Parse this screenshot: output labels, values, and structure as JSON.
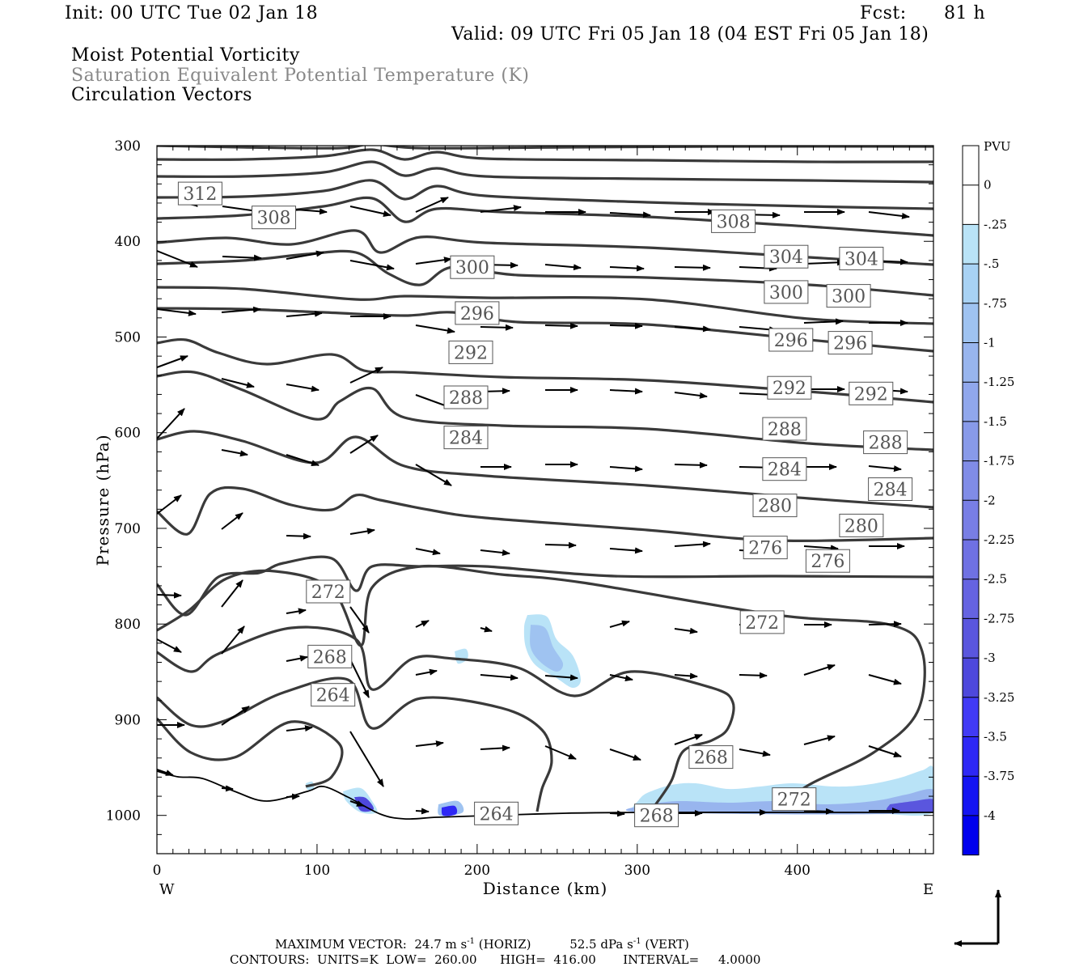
{
  "header": {
    "init": "Init: 00 UTC Tue 02 Jan 18",
    "fcst_label": "Fcst:",
    "fcst_value": "81 h",
    "valid": "Valid: 09 UTC Fri 05 Jan 18 (04 EST Fri 05 Jan 18)"
  },
  "legend_titles": {
    "line1": "Moist Potential Vorticity",
    "line2": "Saturation Equivalent Potential Temperature (K)",
    "line3": "Circulation Vectors"
  },
  "footer": {
    "max_vector_label": "MAXIMUM VECTOR:",
    "horiz_value": "24.7 m s",
    "horiz_exp": "-1",
    "horiz_tag": "(HORIZ)",
    "vert_value": "52.5 dPa s",
    "vert_exp": "-1",
    "vert_tag": "(VERT)",
    "contours_line": "CONTOURS:  UNITS=K  LOW=  260.00      HIGH=  416.00       INTERVAL=     4.0000"
  },
  "colors": {
    "contour": "#3a3a3a",
    "vector": "#000000",
    "terrain": "#000000",
    "pv_light": "#b9e3f7",
    "pv_dark": "#0000ee"
  },
  "chart_data": {
    "type": "cross-section",
    "xlabel": "Distance (km)",
    "ylabel": "Pressure (hPa)",
    "xlim": [
      0,
      485
    ],
    "ylim": [
      1040,
      300
    ],
    "x_ticks": [
      "0",
      "100",
      "200",
      "300",
      "400"
    ],
    "y_ticks": [
      "300",
      "400",
      "500",
      "600",
      "700",
      "800",
      "900",
      "1000"
    ],
    "x_end_labels": {
      "left": "W",
      "right": "E"
    },
    "contour_labels": [
      {
        "text": "312",
        "x": 27,
        "p": 350
      },
      {
        "text": "308",
        "x": 73,
        "p": 375
      },
      {
        "text": "308",
        "x": 360,
        "p": 379
      },
      {
        "text": "304",
        "x": 393,
        "p": 416
      },
      {
        "text": "304",
        "x": 440,
        "p": 418
      },
      {
        "text": "300",
        "x": 197,
        "p": 427
      },
      {
        "text": "300",
        "x": 393,
        "p": 453
      },
      {
        "text": "300",
        "x": 432,
        "p": 457
      },
      {
        "text": "296",
        "x": 200,
        "p": 475
      },
      {
        "text": "296",
        "x": 396,
        "p": 503
      },
      {
        "text": "296",
        "x": 433,
        "p": 506
      },
      {
        "text": "292",
        "x": 196,
        "p": 516
      },
      {
        "text": "292",
        "x": 395,
        "p": 553
      },
      {
        "text": "292",
        "x": 446,
        "p": 559
      },
      {
        "text": "288",
        "x": 193,
        "p": 563
      },
      {
        "text": "288",
        "x": 392,
        "p": 596
      },
      {
        "text": "288",
        "x": 455,
        "p": 610
      },
      {
        "text": "284",
        "x": 193,
        "p": 605
      },
      {
        "text": "284",
        "x": 392,
        "p": 638
      },
      {
        "text": "284",
        "x": 458,
        "p": 659
      },
      {
        "text": "280",
        "x": 386,
        "p": 676
      },
      {
        "text": "280",
        "x": 440,
        "p": 697
      },
      {
        "text": "276",
        "x": 380,
        "p": 720
      },
      {
        "text": "276",
        "x": 419,
        "p": 734
      },
      {
        "text": "272",
        "x": 107,
        "p": 766
      },
      {
        "text": "272",
        "x": 378,
        "p": 798
      },
      {
        "text": "268",
        "x": 108,
        "p": 834
      },
      {
        "text": "268",
        "x": 346,
        "p": 939
      },
      {
        "text": "268",
        "x": 312,
        "p": 1000
      },
      {
        "text": "264",
        "x": 110,
        "p": 874
      },
      {
        "text": "264",
        "x": 212,
        "p": 998
      },
      {
        "text": "272",
        "x": 398,
        "p": 983
      }
    ],
    "colorbar": {
      "unit": "PVU",
      "labels": [
        "0",
        "-.25",
        "-.5",
        "-.75",
        "-1",
        "-1.25",
        "-1.5",
        "-1.75",
        "-2",
        "-2.25",
        "-2.5",
        "-2.75",
        "-3",
        "-3.25",
        "-3.5",
        "-3.75",
        "-4"
      ],
      "colors": [
        "#ffffff",
        "#ffffff",
        "#b9e3f7",
        "#a8d2f4",
        "#9fc3f1",
        "#98b5ee",
        "#90a7ec",
        "#889ae9",
        "#808ce7",
        "#787ee5",
        "#6f71e3",
        "#6563e1",
        "#5a56de",
        "#4e48dc",
        "#413af5",
        "#2e28f5",
        "#1414f2",
        "#0000ee"
      ]
    }
  }
}
